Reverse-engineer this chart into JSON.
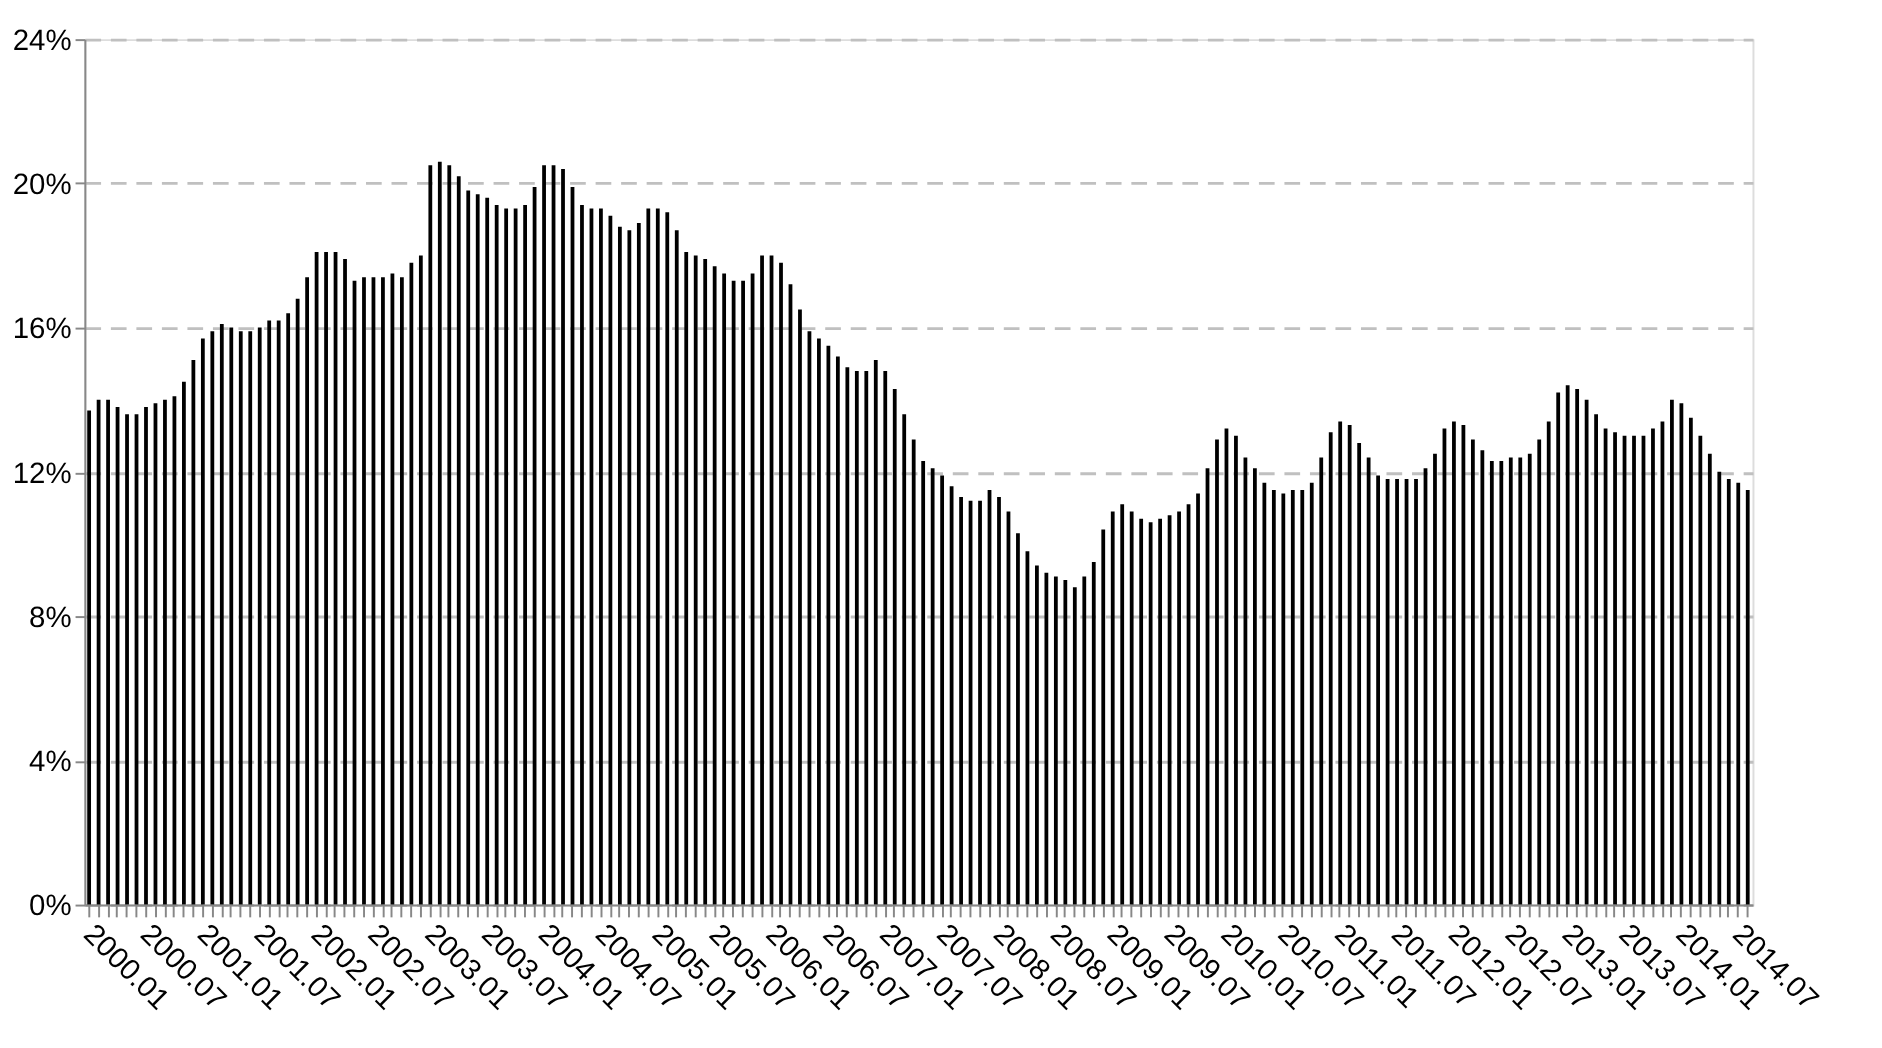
{
  "chart_data": {
    "type": "bar",
    "categories": [
      "2000.01",
      null,
      null,
      null,
      null,
      null,
      "2000.07",
      null,
      null,
      null,
      null,
      null,
      "2001.01",
      null,
      null,
      null,
      null,
      null,
      "2001.07",
      null,
      null,
      null,
      null,
      null,
      "2002.01",
      null,
      null,
      null,
      null,
      null,
      "2002.07",
      null,
      null,
      null,
      null,
      null,
      "2003.01",
      null,
      null,
      null,
      null,
      null,
      "2003.07",
      null,
      null,
      null,
      null,
      null,
      "2004.01",
      null,
      null,
      null,
      null,
      null,
      "2004.07",
      null,
      null,
      null,
      null,
      null,
      "2005.01",
      null,
      null,
      null,
      null,
      null,
      "2005.07",
      null,
      null,
      null,
      null,
      null,
      "2006.01",
      null,
      null,
      null,
      null,
      null,
      "2006.07",
      null,
      null,
      null,
      null,
      null,
      "2007.01",
      null,
      null,
      null,
      null,
      null,
      "2007.07",
      null,
      null,
      null,
      null,
      null,
      "2008.01",
      null,
      null,
      null,
      null,
      null,
      "2008.07",
      null,
      null,
      null,
      null,
      null,
      "2009.01",
      null,
      null,
      null,
      null,
      null,
      "2009.07",
      null,
      null,
      null,
      null,
      null,
      "2010.01",
      null,
      null,
      null,
      null,
      null,
      "2010.07",
      null,
      null,
      null,
      null,
      null,
      "2011.01",
      null,
      null,
      null,
      null,
      null,
      "2011.07",
      null,
      null,
      null,
      null,
      null,
      "2012.01",
      null,
      null,
      null,
      null,
      null,
      "2012.07",
      null,
      null,
      null,
      null,
      null,
      "2013.01",
      null,
      null,
      null,
      null,
      null,
      "2013.07",
      null,
      null,
      null,
      null,
      null,
      "2014.01",
      null,
      null,
      null,
      null,
      null,
      "2014.07",
      null
    ],
    "values": [
      13.7,
      14.0,
      14.0,
      13.8,
      13.6,
      13.6,
      13.8,
      13.9,
      14.0,
      14.1,
      14.5,
      15.1,
      15.7,
      15.9,
      16.1,
      16.0,
      15.9,
      15.9,
      16.0,
      16.2,
      16.2,
      16.4,
      16.8,
      17.4,
      18.1,
      18.1,
      18.1,
      17.9,
      17.3,
      17.4,
      17.4,
      17.4,
      17.5,
      17.4,
      17.8,
      18.0,
      20.5,
      20.6,
      20.5,
      20.2,
      19.8,
      19.7,
      19.6,
      19.4,
      19.3,
      19.3,
      19.4,
      19.9,
      20.5,
      20.5,
      20.4,
      19.9,
      19.4,
      19.3,
      19.3,
      19.1,
      18.8,
      18.7,
      18.9,
      19.3,
      19.3,
      19.2,
      18.7,
      18.1,
      18.0,
      17.9,
      17.7,
      17.5,
      17.3,
      17.3,
      17.5,
      18.0,
      18.0,
      17.8,
      17.2,
      16.5,
      15.9,
      15.7,
      15.5,
      15.2,
      14.9,
      14.8,
      14.8,
      15.1,
      14.8,
      14.3,
      13.6,
      12.9,
      12.3,
      12.1,
      11.9,
      11.6,
      11.3,
      11.2,
      11.2,
      11.5,
      11.3,
      10.9,
      10.3,
      9.8,
      9.4,
      9.2,
      9.1,
      9.0,
      8.8,
      9.1,
      9.5,
      10.4,
      10.9,
      11.1,
      10.9,
      10.7,
      10.6,
      10.7,
      10.8,
      10.9,
      11.1,
      11.4,
      12.1,
      12.9,
      13.2,
      13.0,
      12.4,
      12.1,
      11.7,
      11.5,
      11.4,
      11.5,
      11.5,
      11.7,
      12.4,
      13.1,
      13.4,
      13.3,
      12.8,
      12.4,
      11.9,
      11.8,
      11.8,
      11.8,
      11.8,
      12.1,
      12.5,
      13.2,
      13.4,
      13.3,
      12.9,
      12.6,
      12.3,
      12.3,
      12.4,
      12.4,
      12.5,
      12.9,
      13.4,
      14.2,
      14.4,
      14.3,
      14.0,
      13.6,
      13.2,
      13.1,
      13.0,
      13.0,
      13.0,
      13.2,
      13.4,
      14.0,
      13.9,
      13.5,
      13.0,
      12.5,
      12.0,
      11.8,
      11.7,
      11.5
    ],
    "color": "#000000",
    "ylim": [
      0,
      24
    ],
    "yticks": [
      {
        "value": 0,
        "label": "0%"
      },
      {
        "value": 4,
        "label": "4%"
      },
      {
        "value": 8,
        "label": "8%"
      },
      {
        "value": 12,
        "label": "12%"
      },
      {
        "value": 16,
        "label": "16%"
      },
      {
        "value": 20,
        "label": "20%"
      },
      {
        "value": 24,
        "label": "24%"
      }
    ],
    "grid": "y"
  }
}
